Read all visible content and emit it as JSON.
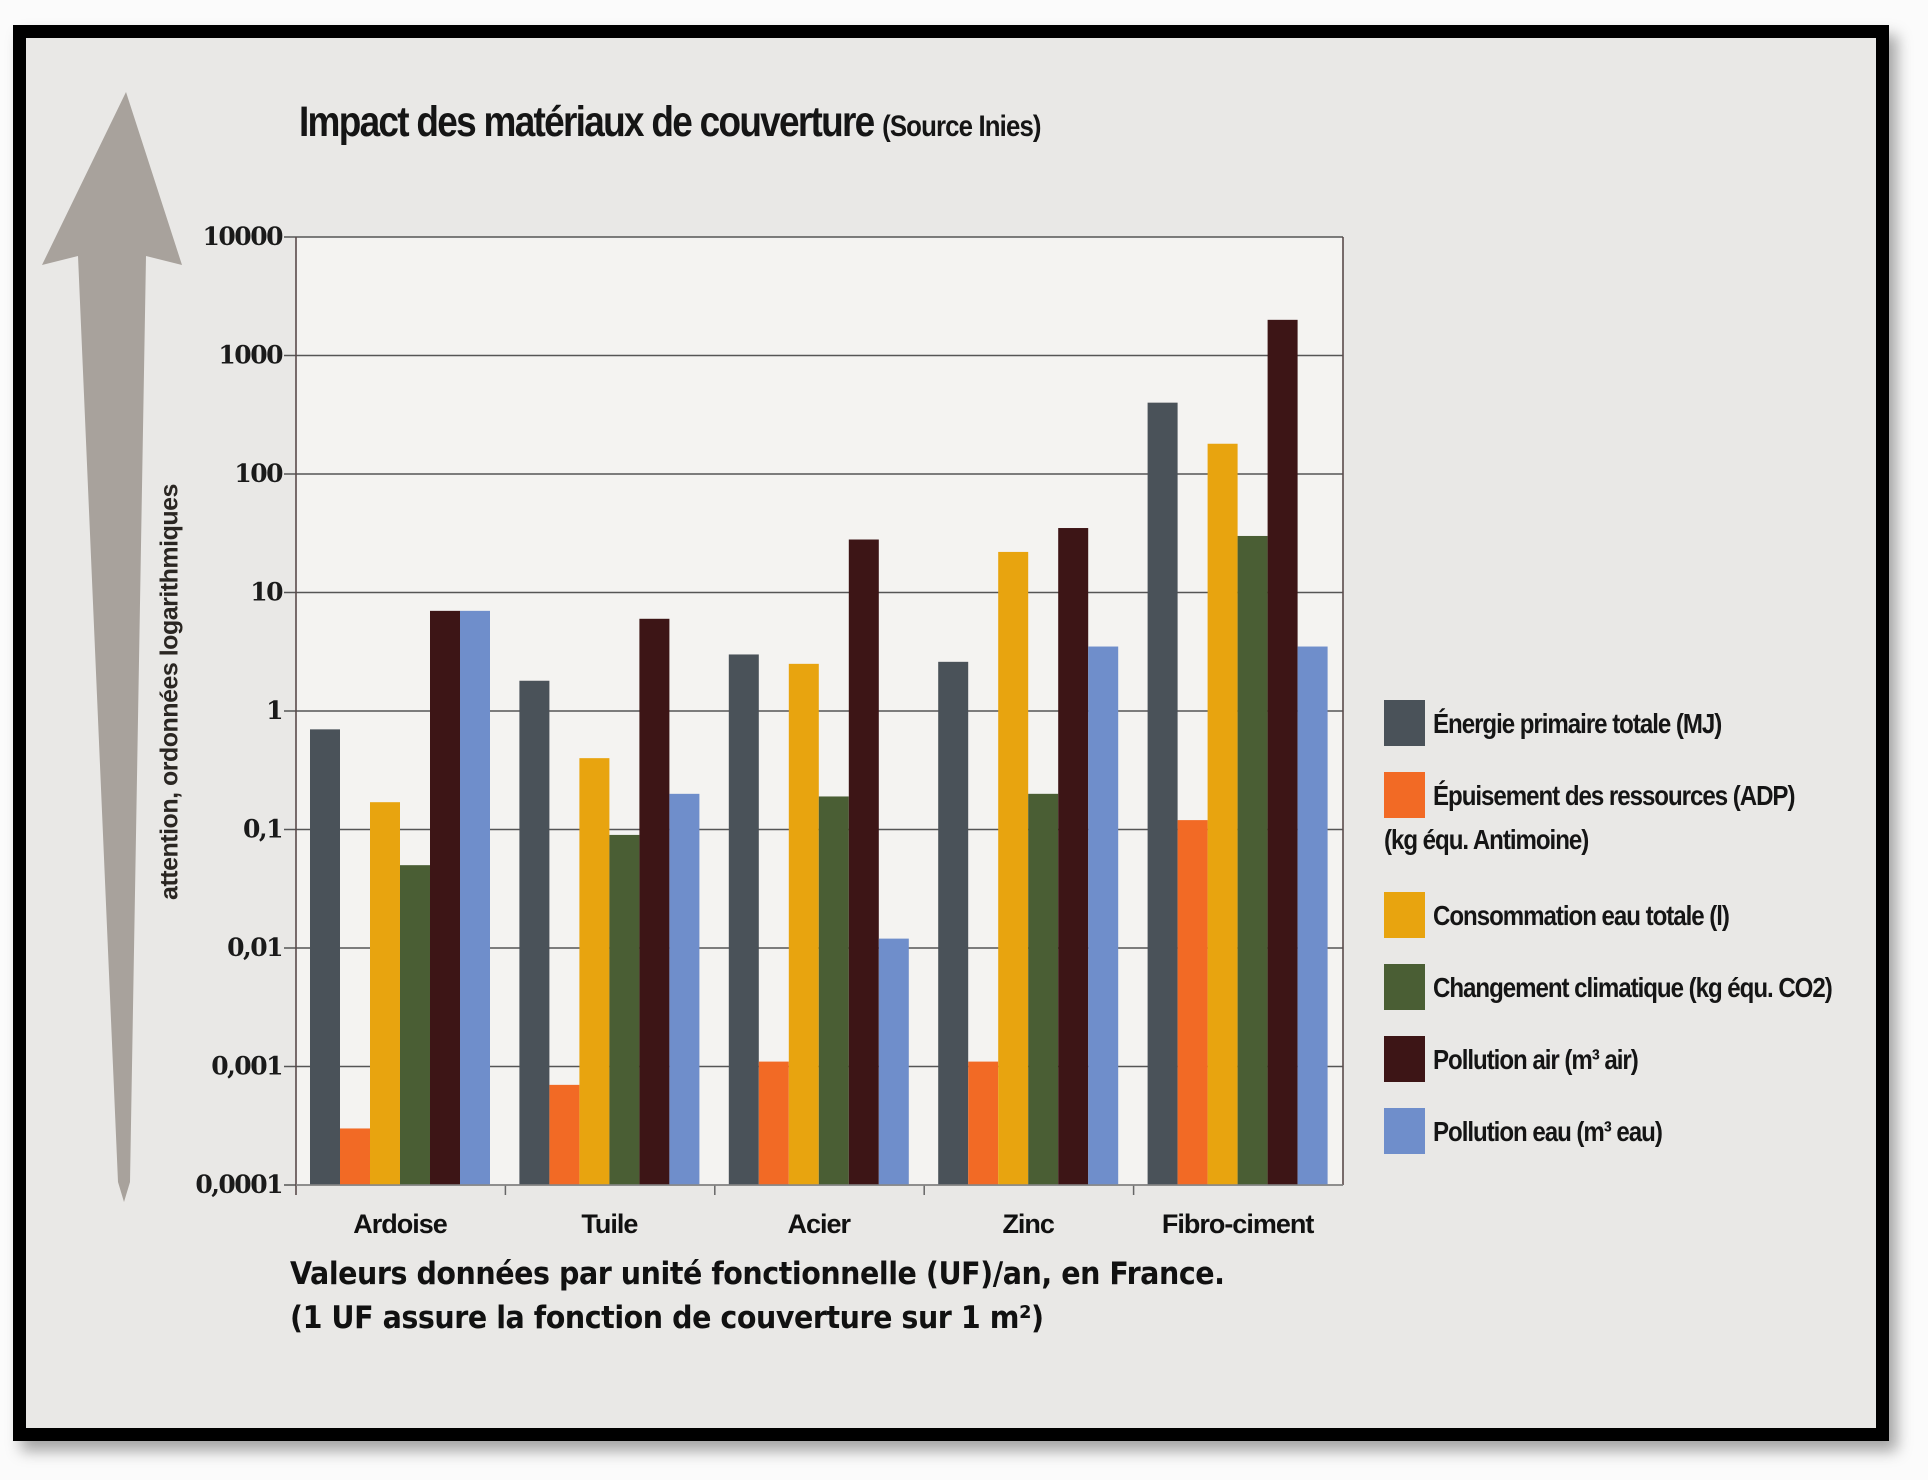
{
  "title": {
    "main": "Impact des matériaux de couverture",
    "source": "(Source Inies)"
  },
  "arrow_note": "attention, ordonnées logarithmiques",
  "caption": {
    "line1": "Valeurs données par unité fonctionnelle (UF)/an, en France.",
    "line2": "(1 UF assure la fonction de couverture sur 1 m²)"
  },
  "legend": {
    "items": [
      {
        "label": "Énergie primaire totale (MJ)",
        "sub": null
      },
      {
        "label": "Épuisement des ressources (ADP)",
        "sub": "(kg équ. Antimoine)"
      },
      {
        "label": "Consommation eau totale (l)",
        "sub": null
      },
      {
        "label": "Changement climatique (kg équ. CO2)",
        "sub": null
      },
      {
        "label": "Pollution air (m³ air)",
        "sub": null
      },
      {
        "label": "Pollution eau (m³ eau)",
        "sub": null
      }
    ]
  },
  "chart_data": {
    "type": "bar",
    "title": "Impact des matériaux de couverture (Source Inies)",
    "xlabel": "",
    "ylabel": "attention, ordonnées logarithmiques",
    "yscale": "log",
    "ylim": [
      0.0001,
      10000
    ],
    "yticks": [
      10000,
      1000,
      100,
      10,
      1,
      0.1,
      0.01,
      0.001,
      0.0001
    ],
    "ytick_labels": [
      "10000",
      "1000",
      "100",
      "10",
      "1",
      "0,1",
      "0,01",
      "0,001",
      "0,0001"
    ],
    "grid": true,
    "legend_position": "right",
    "categories": [
      "Ardoise",
      "Tuile",
      "Acier",
      "Zinc",
      "Fibro-ciment"
    ],
    "series": [
      {
        "name": "Énergie primaire totale (MJ)",
        "color": "#4a5259",
        "values": [
          0.7,
          1.8,
          3,
          2.6,
          400
        ]
      },
      {
        "name": "Épuisement des ressources (ADP) (kg équ. Antimoine)",
        "color": "#f26a25",
        "values": [
          0.0003,
          0.0007,
          0.0011,
          0.0011,
          0.12
        ]
      },
      {
        "name": "Consommation eau totale (l)",
        "color": "#e8a40f",
        "values": [
          0.17,
          0.4,
          2.5,
          22,
          180
        ]
      },
      {
        "name": "Changement climatique (kg équ. CO2)",
        "color": "#4a5e34",
        "values": [
          0.05,
          0.09,
          0.19,
          0.2,
          30
        ]
      },
      {
        "name": "Pollution air (m³ air)",
        "color": "#3d1516",
        "values": [
          7,
          6,
          28,
          35,
          2000
        ]
      },
      {
        "name": "Pollution eau (m³ eau)",
        "color": "#6f8ecb",
        "values": [
          7,
          0.2,
          0.012,
          3.5,
          3.5
        ]
      }
    ]
  }
}
